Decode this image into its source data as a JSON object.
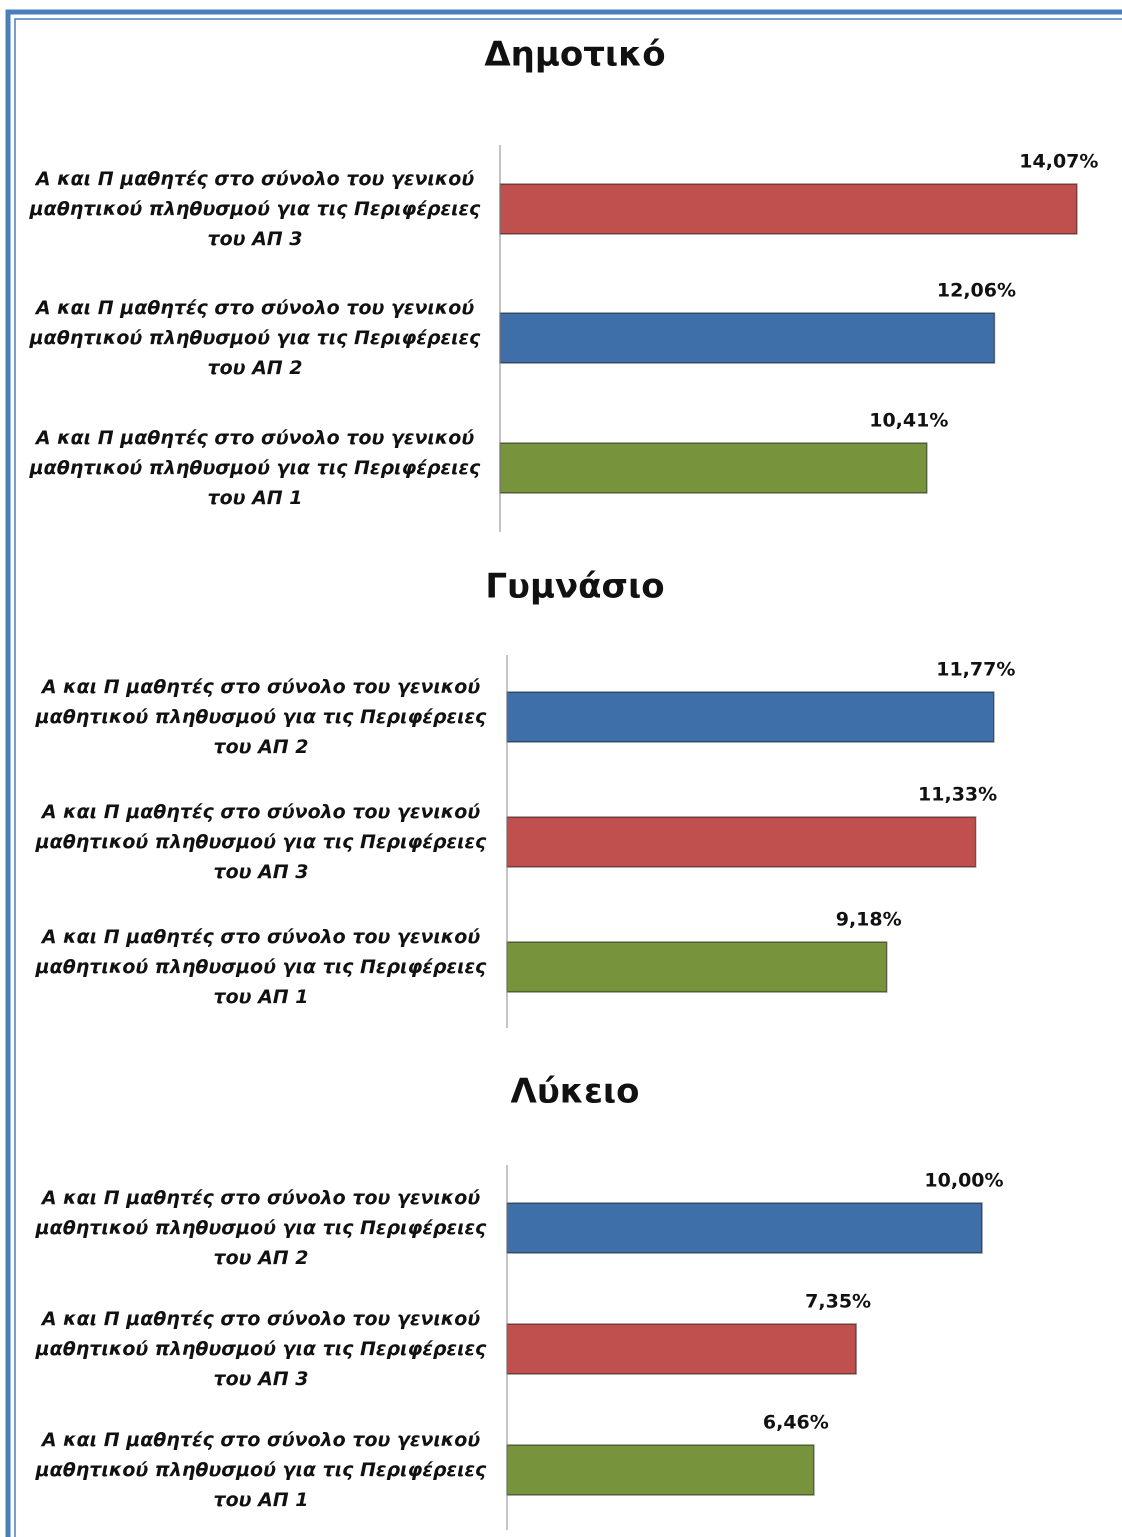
{
  "chart_data": [
    {
      "type": "barh",
      "title": "Δημοτικό",
      "categories": [
        "Α και Π μαθητές  στο σύνολο του γενικού μαθητικού πληθυσμού για τις Περιφέρειες του ΑΠ 3",
        "Α και Π μαθητές  στο σύνολο του γενικού μαθητικού πληθυσμού για τις Περιφέρειες του ΑΠ 2",
        "Α και Π μαθητές  στο σύνολο του γενικού μαθητικού πληθυσμού για τις Περιφέρειες του ΑΠ 1"
      ],
      "values": [
        14.07,
        12.06,
        10.41
      ],
      "value_labels": [
        "14,07%",
        "12,06%",
        "10,41%"
      ],
      "colors": [
        "#c0504d",
        "#3f6fa8",
        "#77933c"
      ],
      "xlim": [
        0,
        15
      ]
    },
    {
      "type": "barh",
      "title": "Γυμνάσιο",
      "categories": [
        "Α και Π μαθητές  στο σύνολο του γενικού μαθητικού πληθυσμού για τις Περιφέρειες του ΑΠ 2",
        "Α και Π μαθητές  στο σύνολο του γενικού μαθητικού πληθυσμού για τις Περιφέρειες του ΑΠ 3",
        "Α και Π μαθητές  στο σύνολο του γενικού μαθητικού πληθυσμού για τις Περιφέρειες του ΑΠ 1"
      ],
      "values": [
        11.77,
        11.33,
        9.18
      ],
      "value_labels": [
        "11,77%",
        "11,33%",
        "9,18%"
      ],
      "colors": [
        "#3f6fa8",
        "#c0504d",
        "#77933c"
      ],
      "xlim": [
        0,
        14.7
      ]
    },
    {
      "type": "barh",
      "title": "Λύκειο",
      "categories": [
        "Α και Π μαθητές  στο σύνολο του γενικού μαθητικού πληθυσμού για τις Περιφέρειες του ΑΠ 2",
        "Α και Π μαθητές  στο σύνολο του γενικού μαθητικού πληθυσμού για τις Περιφέρειες του ΑΠ 3",
        "Α και Π μαθητές  στο σύνολο του γενικού μαθητικού πληθυσμού για τις Περιφέρειες του ΑΠ 1"
      ],
      "values": [
        10.0,
        7.35,
        6.46
      ],
      "value_labels": [
        "10,00%",
        "7,35%",
        "6,46%"
      ],
      "colors": [
        "#3f6fa8",
        "#c0504d",
        "#77933c"
      ],
      "xlim": [
        0,
        12.8
      ]
    }
  ]
}
